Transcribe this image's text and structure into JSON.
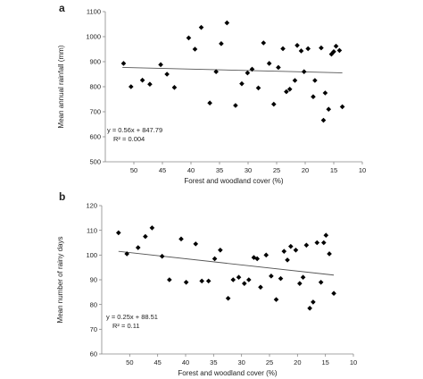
{
  "chart_data": [
    {
      "type": "scatter",
      "panel_label": "a",
      "xlabel": "Forest and woodland cover (%)",
      "ylabel": "Mean annual rainfall (mm)",
      "xlim": [
        55,
        10
      ],
      "ylim": [
        500,
        1100
      ],
      "xticks": [
        50,
        45,
        40,
        35,
        30,
        25,
        20,
        15,
        10
      ],
      "yticks": [
        500,
        600,
        700,
        800,
        900,
        1000,
        1100
      ],
      "grid": false,
      "trendline": {
        "x0": 52,
        "y0": 876.9,
        "x1": 13.5,
        "y1": 855.3
      },
      "annotation": {
        "equation": "y = 0.56x + 847.79",
        "r2": "R² = 0.004"
      },
      "points": [
        {
          "x": 51.8,
          "y": 893
        },
        {
          "x": 50.5,
          "y": 800
        },
        {
          "x": 48.5,
          "y": 826
        },
        {
          "x": 47.2,
          "y": 810
        },
        {
          "x": 45.3,
          "y": 888
        },
        {
          "x": 44.2,
          "y": 850
        },
        {
          "x": 42.9,
          "y": 797
        },
        {
          "x": 40.4,
          "y": 995
        },
        {
          "x": 39.3,
          "y": 950
        },
        {
          "x": 38.2,
          "y": 1037
        },
        {
          "x": 36.7,
          "y": 735
        },
        {
          "x": 35.6,
          "y": 860
        },
        {
          "x": 34.7,
          "y": 972
        },
        {
          "x": 33.7,
          "y": 1055
        },
        {
          "x": 32.2,
          "y": 725
        },
        {
          "x": 31.1,
          "y": 812
        },
        {
          "x": 30.1,
          "y": 855
        },
        {
          "x": 29.3,
          "y": 870
        },
        {
          "x": 28.2,
          "y": 795
        },
        {
          "x": 27.3,
          "y": 975
        },
        {
          "x": 26.3,
          "y": 893
        },
        {
          "x": 25.5,
          "y": 730
        },
        {
          "x": 24.7,
          "y": 877
        },
        {
          "x": 23.9,
          "y": 952
        },
        {
          "x": 23.3,
          "y": 780
        },
        {
          "x": 22.7,
          "y": 790
        },
        {
          "x": 21.8,
          "y": 825
        },
        {
          "x": 21.4,
          "y": 965
        },
        {
          "x": 20.7,
          "y": 943
        },
        {
          "x": 20.2,
          "y": 860
        },
        {
          "x": 19.5,
          "y": 952
        },
        {
          "x": 18.6,
          "y": 760
        },
        {
          "x": 18.3,
          "y": 825
        },
        {
          "x": 17.2,
          "y": 955
        },
        {
          "x": 16.8,
          "y": 666
        },
        {
          "x": 16.5,
          "y": 775
        },
        {
          "x": 15.9,
          "y": 710
        },
        {
          "x": 15.4,
          "y": 930
        },
        {
          "x": 15.0,
          "y": 940
        },
        {
          "x": 14.6,
          "y": 962
        },
        {
          "x": 14.0,
          "y": 945
        },
        {
          "x": 13.5,
          "y": 720
        }
      ]
    },
    {
      "type": "scatter",
      "panel_label": "b",
      "xlabel": "Forest and woodland cover (%)",
      "ylabel": "Mean number of rainy days",
      "xlim": [
        55,
        10
      ],
      "ylim": [
        60,
        120
      ],
      "xticks": [
        50,
        45,
        40,
        35,
        30,
        25,
        20,
        15,
        10
      ],
      "yticks": [
        60,
        70,
        80,
        90,
        100,
        110,
        120
      ],
      "grid": false,
      "trendline": {
        "x0": 52,
        "y0": 101.5,
        "x1": 13.5,
        "y1": 91.9
      },
      "annotation": {
        "equation": "y = 0.25x + 88.51",
        "r2": "R² = 0.11"
      },
      "points": [
        {
          "x": 52.0,
          "y": 109
        },
        {
          "x": 50.5,
          "y": 100.5
        },
        {
          "x": 48.5,
          "y": 103
        },
        {
          "x": 47.2,
          "y": 107.5
        },
        {
          "x": 46.0,
          "y": 111
        },
        {
          "x": 44.2,
          "y": 99.5
        },
        {
          "x": 42.9,
          "y": 90
        },
        {
          "x": 40.8,
          "y": 106.5
        },
        {
          "x": 39.9,
          "y": 89
        },
        {
          "x": 38.2,
          "y": 104.5
        },
        {
          "x": 37.1,
          "y": 89.5
        },
        {
          "x": 35.9,
          "y": 89.5
        },
        {
          "x": 34.8,
          "y": 98.5
        },
        {
          "x": 33.8,
          "y": 102
        },
        {
          "x": 32.4,
          "y": 82.5
        },
        {
          "x": 31.5,
          "y": 90
        },
        {
          "x": 30.5,
          "y": 91
        },
        {
          "x": 29.5,
          "y": 88.5
        },
        {
          "x": 28.7,
          "y": 90
        },
        {
          "x": 27.8,
          "y": 99
        },
        {
          "x": 27.2,
          "y": 98.5
        },
        {
          "x": 26.6,
          "y": 87
        },
        {
          "x": 25.6,
          "y": 100
        },
        {
          "x": 24.7,
          "y": 91.5
        },
        {
          "x": 23.8,
          "y": 82
        },
        {
          "x": 23.0,
          "y": 90.5
        },
        {
          "x": 22.4,
          "y": 101.5
        },
        {
          "x": 21.8,
          "y": 98
        },
        {
          "x": 21.2,
          "y": 103.5
        },
        {
          "x": 20.3,
          "y": 102
        },
        {
          "x": 19.6,
          "y": 88.5
        },
        {
          "x": 19.0,
          "y": 91
        },
        {
          "x": 18.4,
          "y": 104
        },
        {
          "x": 17.8,
          "y": 78.5
        },
        {
          "x": 17.2,
          "y": 81
        },
        {
          "x": 16.5,
          "y": 105
        },
        {
          "x": 15.8,
          "y": 89
        },
        {
          "x": 15.3,
          "y": 105
        },
        {
          "x": 14.9,
          "y": 108
        },
        {
          "x": 14.3,
          "y": 100.5
        },
        {
          "x": 13.5,
          "y": 84.5
        }
      ]
    }
  ]
}
